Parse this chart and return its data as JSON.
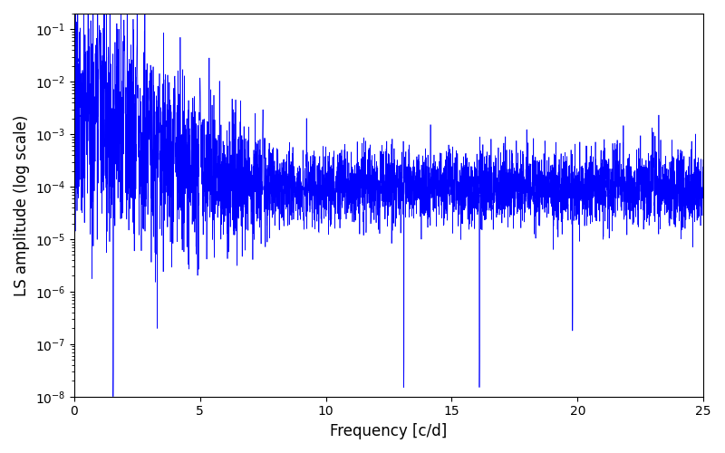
{
  "title": "",
  "xlabel": "Frequency [c/d]",
  "ylabel": "LS amplitude (log scale)",
  "xlim": [
    0,
    25
  ],
  "ylim": [
    1e-08,
    0.2
  ],
  "yticks": [
    1e-08,
    1e-07,
    1e-06,
    1e-05,
    0.0001,
    0.001,
    0.01,
    0.1
  ],
  "line_color": "#0000ff",
  "line_width": 0.5,
  "background_color": "#ffffff",
  "figsize": [
    8.0,
    5.0
  ],
  "dpi": 100,
  "seed": 12345,
  "n_points": 5000,
  "freq_max": 25.0
}
